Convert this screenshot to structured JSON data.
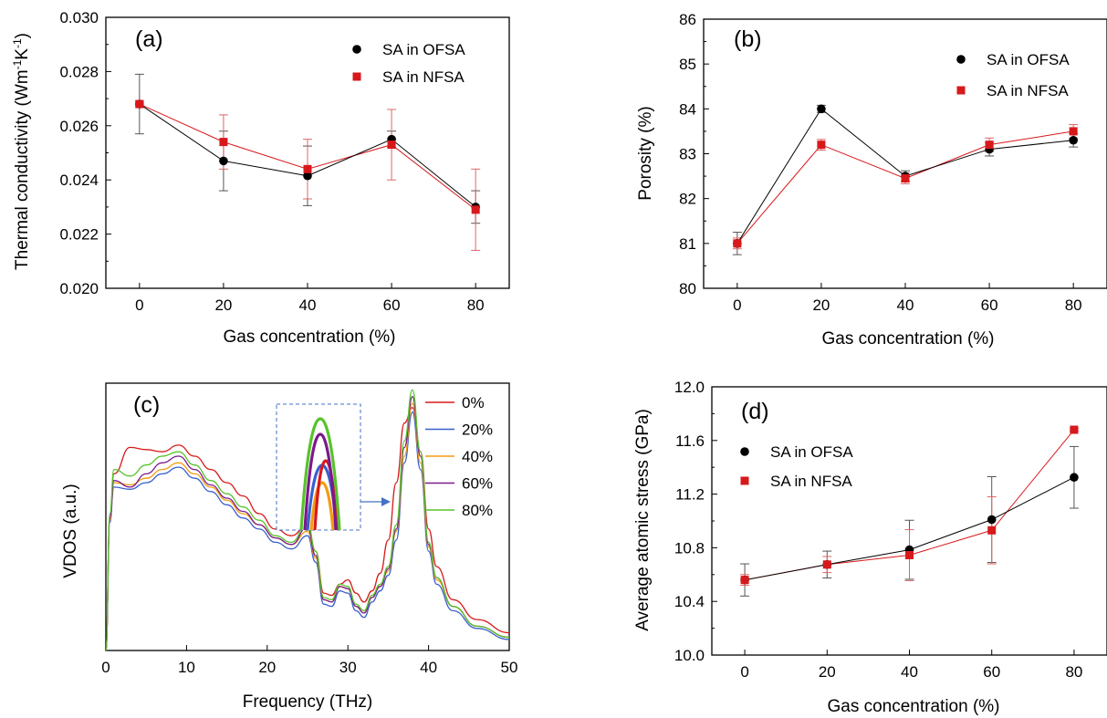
{
  "figure": {
    "panel_a": {
      "label": "(a)",
      "xlabel": "Gas concentration (%)",
      "ylabel_main": "Thermal conductivity (Wm",
      "ylabel_sup1": "-1",
      "ylabel_mid": "K",
      "ylabel_sup2": "-1",
      "ylabel_end": ")"
    },
    "panel_b": {
      "label": "(b)",
      "xlabel": "Gas concentration (%)",
      "ylabel": "Porosity (%)"
    },
    "panel_c": {
      "label": "(c)",
      "xlabel": "Frequency (THz)",
      "ylabel": "VDOS (a.u.)"
    },
    "panel_d": {
      "label": "(d)",
      "xlabel": "Gas concentration (%)",
      "ylabel": "Average atomic stress (GPa)"
    }
  },
  "chart_data": [
    {
      "id": "a",
      "type": "scatter",
      "label": "(a)",
      "xlabel": "Gas concentration (%)",
      "ylabel": "Thermal conductivity (Wm-1K-1)",
      "xlim": [
        -8,
        88
      ],
      "ylim": [
        0.02,
        0.03
      ],
      "xticks": [
        0,
        20,
        40,
        60,
        80
      ],
      "yticks": [
        0.02,
        0.022,
        0.024,
        0.026,
        0.028,
        0.03
      ],
      "ytick_labels": [
        "0.020",
        "0.022",
        "0.024",
        "0.026",
        "0.028",
        "0.030"
      ],
      "legend_position": "top-right",
      "series": [
        {
          "name": "SA in OFSA",
          "marker": "circle",
          "color": "#000000",
          "x": [
            0,
            20,
            40,
            60,
            80
          ],
          "y": [
            0.0268,
            0.0247,
            0.02415,
            0.0255,
            0.023
          ],
          "err": [
            0.0011,
            0.0011,
            0.0011,
            0.0003,
            0.0006
          ]
        },
        {
          "name": "SA in NFSA",
          "marker": "square",
          "color": "#d7191c",
          "x": [
            0,
            20,
            40,
            60,
            80
          ],
          "y": [
            0.0268,
            0.0254,
            0.0244,
            0.0253,
            0.0229
          ],
          "err": [
            0.0001,
            0.001,
            0.0011,
            0.0013,
            0.0015
          ]
        }
      ]
    },
    {
      "id": "b",
      "type": "scatter",
      "label": "(b)",
      "xlabel": "Gas concentration (%)",
      "ylabel": "Porosity (%)",
      "xlim": [
        -8,
        88
      ],
      "ylim": [
        80,
        86
      ],
      "xticks": [
        0,
        20,
        40,
        60,
        80
      ],
      "yticks": [
        80,
        81,
        82,
        83,
        84,
        85,
        86
      ],
      "ytick_labels": [
        "80",
        "81",
        "82",
        "83",
        "84",
        "85",
        "86"
      ],
      "legend_position": "top-right",
      "series": [
        {
          "name": "SA in OFSA",
          "marker": "circle",
          "color": "#000000",
          "x": [
            0,
            20,
            40,
            60,
            80
          ],
          "y": [
            81.0,
            84.0,
            82.5,
            83.1,
            83.3
          ],
          "err": [
            0.25,
            0.08,
            0.12,
            0.15,
            0.15
          ]
        },
        {
          "name": "SA in NFSA",
          "marker": "square",
          "color": "#d7191c",
          "x": [
            0,
            20,
            40,
            60,
            80
          ],
          "y": [
            81.0,
            83.2,
            82.45,
            83.2,
            83.5
          ],
          "err": [
            0.12,
            0.12,
            0.12,
            0.15,
            0.15
          ]
        }
      ]
    },
    {
      "id": "c",
      "type": "line",
      "label": "(c)",
      "xlabel": "Frequency (THz)",
      "ylabel": "VDOS (a.u.)",
      "xlim": [
        0,
        50
      ],
      "xticks": [
        0,
        10,
        20,
        30,
        40,
        50
      ],
      "legend_position": "top-right",
      "inset": "zoom of peak near 38 THz",
      "series": [
        {
          "name": "0%",
          "color": "#d7191c",
          "x": [
            0,
            0.5,
            1,
            3,
            5,
            7,
            9,
            11,
            13,
            15,
            17,
            19,
            21,
            23,
            25,
            26,
            27,
            28,
            29,
            30,
            31,
            32,
            33,
            34,
            35,
            36,
            37,
            38,
            39,
            40,
            41,
            43,
            46,
            50
          ],
          "y": [
            0.0,
            0.6,
            0.8,
            0.92,
            0.91,
            0.9,
            0.93,
            0.88,
            0.82,
            0.76,
            0.7,
            0.62,
            0.55,
            0.52,
            0.57,
            0.45,
            0.26,
            0.25,
            0.3,
            0.32,
            0.26,
            0.22,
            0.27,
            0.35,
            0.5,
            0.76,
            1.03,
            1.1,
            0.9,
            0.55,
            0.38,
            0.23,
            0.14,
            0.08
          ]
        },
        {
          "name": "20%",
          "color": "#3a5fcd",
          "x": [
            0,
            0.5,
            1,
            3,
            5,
            7,
            9,
            11,
            13,
            15,
            17,
            19,
            21,
            23,
            25,
            26,
            27,
            28,
            29,
            30,
            31,
            32,
            33,
            34,
            35,
            36,
            37,
            38,
            39,
            40,
            41,
            43,
            46,
            50
          ],
          "y": [
            0.0,
            0.58,
            0.74,
            0.73,
            0.76,
            0.8,
            0.83,
            0.78,
            0.72,
            0.66,
            0.6,
            0.55,
            0.49,
            0.46,
            0.52,
            0.4,
            0.21,
            0.2,
            0.27,
            0.26,
            0.18,
            0.15,
            0.22,
            0.27,
            0.34,
            0.5,
            0.85,
            1.08,
            0.82,
            0.45,
            0.3,
            0.18,
            0.1,
            0.05
          ]
        },
        {
          "name": "40%",
          "color": "#f39c12",
          "x": [
            0,
            0.5,
            1,
            3,
            5,
            7,
            9,
            11,
            13,
            15,
            17,
            19,
            21,
            23,
            25,
            26,
            27,
            28,
            29,
            30,
            31,
            32,
            33,
            34,
            35,
            36,
            37,
            38,
            39,
            40,
            41,
            43,
            46,
            50
          ],
          "y": [
            0.0,
            0.59,
            0.76,
            0.75,
            0.78,
            0.82,
            0.85,
            0.8,
            0.74,
            0.68,
            0.62,
            0.57,
            0.51,
            0.48,
            0.54,
            0.42,
            0.23,
            0.22,
            0.29,
            0.28,
            0.2,
            0.17,
            0.24,
            0.29,
            0.36,
            0.54,
            0.88,
            1.12,
            0.85,
            0.47,
            0.32,
            0.2,
            0.11,
            0.06
          ]
        },
        {
          "name": "60%",
          "color": "#7b1a8c",
          "x": [
            0,
            0.5,
            1,
            3,
            5,
            7,
            9,
            11,
            13,
            15,
            17,
            19,
            21,
            23,
            25,
            26,
            27,
            28,
            29,
            30,
            31,
            32,
            33,
            34,
            35,
            36,
            37,
            38,
            39,
            40,
            41,
            43,
            46,
            50
          ],
          "y": [
            0.0,
            0.6,
            0.77,
            0.74,
            0.8,
            0.85,
            0.88,
            0.82,
            0.75,
            0.69,
            0.63,
            0.57,
            0.51,
            0.48,
            0.56,
            0.43,
            0.23,
            0.22,
            0.29,
            0.28,
            0.2,
            0.17,
            0.24,
            0.29,
            0.37,
            0.55,
            0.92,
            1.15,
            0.88,
            0.48,
            0.33,
            0.2,
            0.11,
            0.06
          ]
        },
        {
          "name": "80%",
          "color": "#58c22c",
          "x": [
            0,
            0.5,
            1,
            3,
            5,
            7,
            9,
            11,
            13,
            15,
            17,
            19,
            21,
            23,
            25,
            26,
            27,
            28,
            29,
            30,
            31,
            32,
            33,
            34,
            35,
            36,
            37,
            38,
            39,
            40,
            41,
            43,
            46,
            50
          ],
          "y": [
            0.0,
            0.62,
            0.82,
            0.79,
            0.84,
            0.88,
            0.9,
            0.84,
            0.77,
            0.71,
            0.65,
            0.59,
            0.52,
            0.49,
            0.58,
            0.45,
            0.24,
            0.23,
            0.3,
            0.29,
            0.21,
            0.18,
            0.25,
            0.3,
            0.38,
            0.57,
            0.95,
            1.18,
            0.9,
            0.49,
            0.33,
            0.2,
            0.11,
            0.06
          ]
        }
      ]
    },
    {
      "id": "d",
      "type": "scatter",
      "label": "(d)",
      "xlabel": "Gas concentration (%)",
      "ylabel": "Average atomic stress (GPa)",
      "xlim": [
        -8,
        88
      ],
      "ylim": [
        10.0,
        12.0
      ],
      "xticks": [
        0,
        20,
        40,
        60,
        80
      ],
      "yticks": [
        10.0,
        10.4,
        10.8,
        11.2,
        11.6,
        12.0
      ],
      "ytick_labels": [
        "10.0",
        "10.4",
        "10.8",
        "11.2",
        "11.6",
        "12.0"
      ],
      "legend_position": "top-left",
      "series": [
        {
          "name": "SA in OFSA",
          "marker": "circle",
          "color": "#000000",
          "x": [
            0,
            20,
            40,
            60,
            80
          ],
          "y": [
            10.56,
            10.675,
            10.785,
            11.01,
            11.325
          ],
          "err": [
            0.12,
            0.1,
            0.22,
            0.32,
            0.23
          ]
        },
        {
          "name": "SA in NFSA",
          "marker": "square",
          "color": "#d7191c",
          "x": [
            0,
            20,
            40,
            60,
            80
          ],
          "y": [
            10.56,
            10.675,
            10.745,
            10.93,
            11.68
          ],
          "err": [
            0.04,
            0.06,
            0.19,
            0.25,
            0.01
          ]
        }
      ]
    }
  ]
}
